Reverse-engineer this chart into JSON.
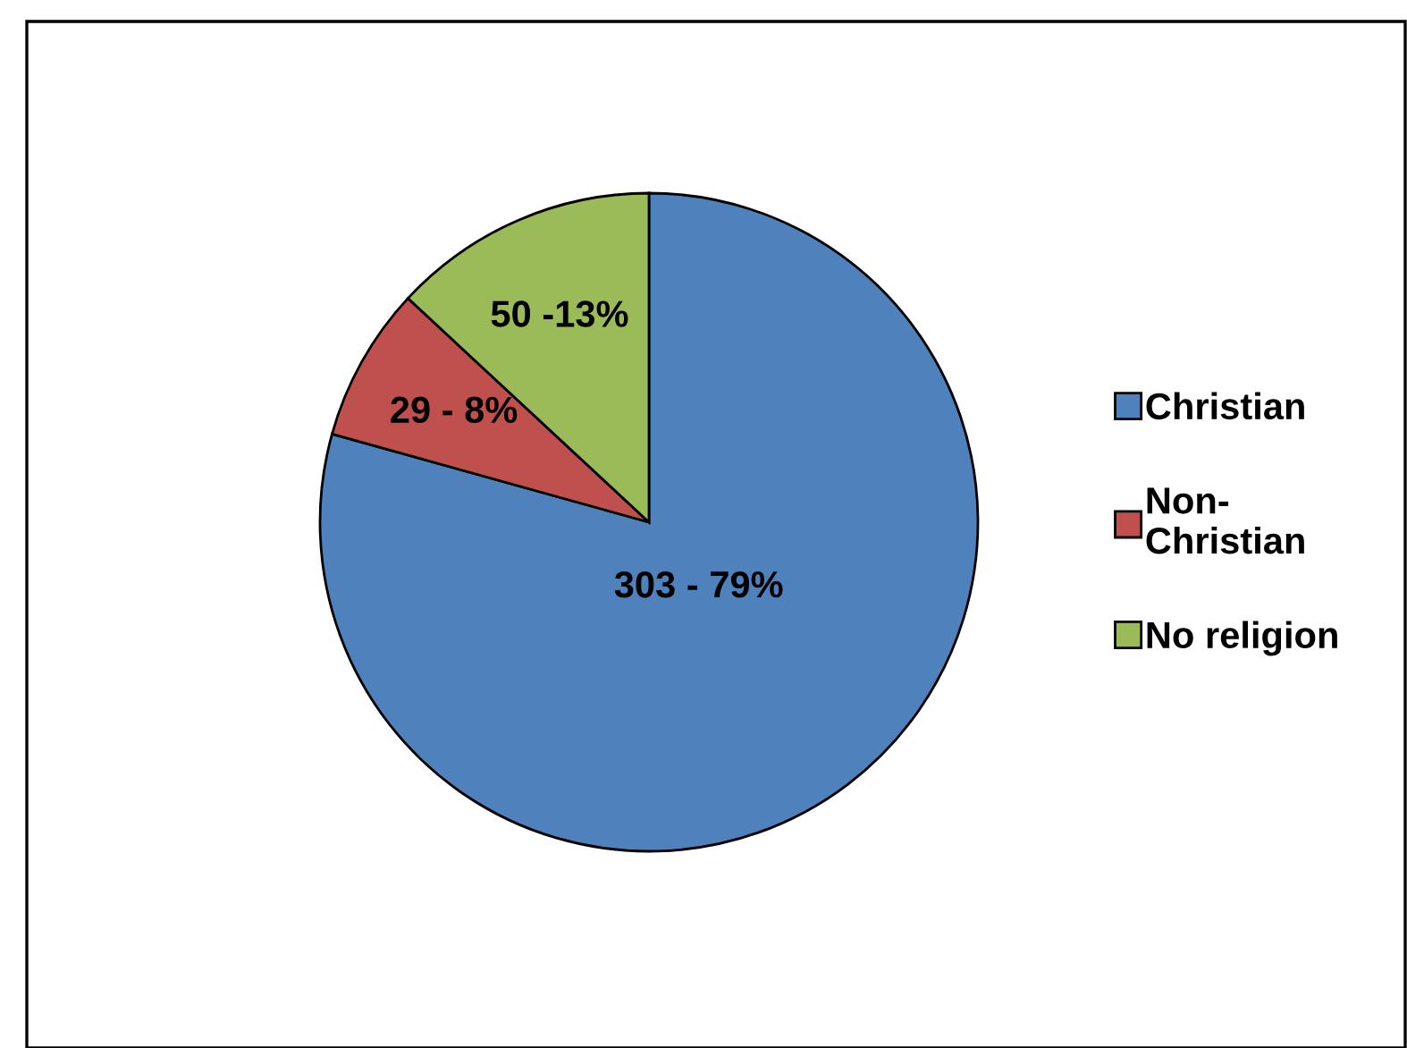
{
  "chart_data": {
    "type": "pie",
    "categories": [
      "Christian",
      "Non-Christian",
      "No religion"
    ],
    "values": [
      303,
      29,
      50
    ],
    "value_labels": [
      "303 - 79%",
      "29 - 8%",
      "50 -13%"
    ],
    "colors": [
      "#4f81bd",
      "#c0504d",
      "#9bbb59"
    ],
    "legend": "right"
  }
}
